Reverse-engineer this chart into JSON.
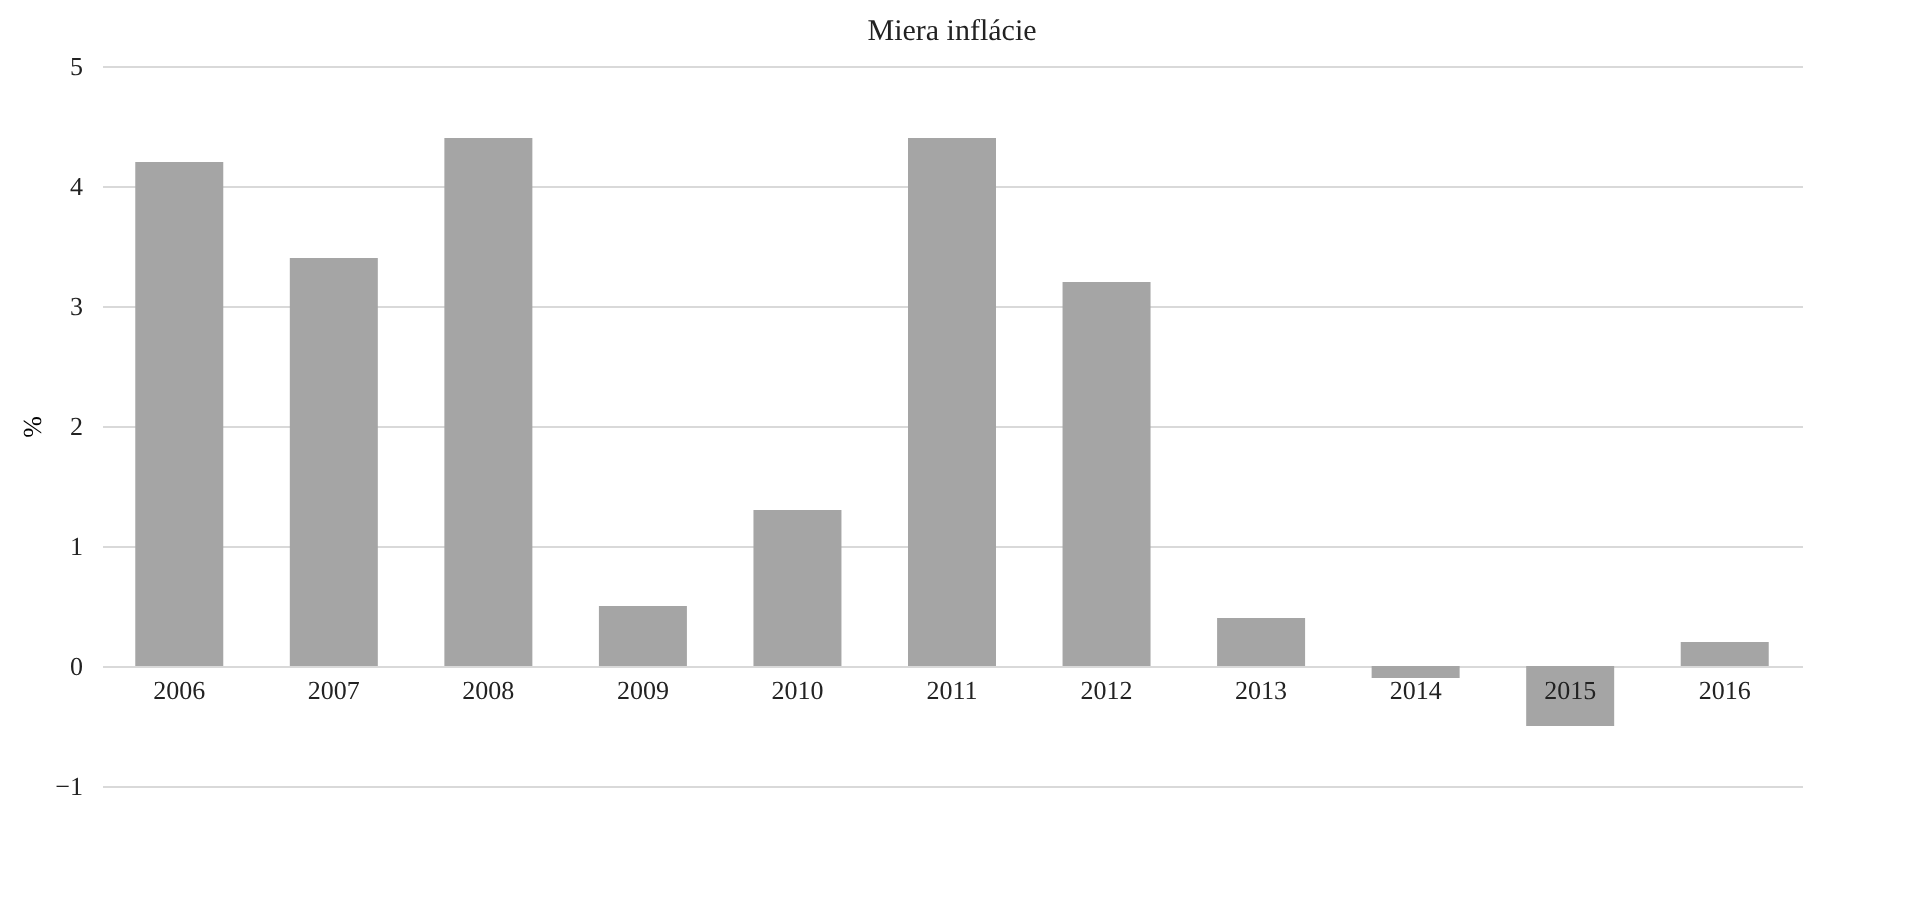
{
  "chart_data": {
    "type": "bar",
    "title": "Miera inflácie",
    "ylabel": "%",
    "categories": [
      "2006",
      "2007",
      "2008",
      "2009",
      "2010",
      "2011",
      "2012",
      "2013",
      "2014",
      "2015",
      "2016"
    ],
    "values": [
      4.2,
      3.4,
      4.4,
      0.5,
      1.3,
      4.4,
      3.2,
      0.4,
      -0.1,
      -0.5,
      0.2
    ],
    "color": "#a5a5a5",
    "ylim": [
      -1,
      5
    ],
    "yticks": [
      -1,
      0,
      1,
      2,
      3,
      4,
      5
    ],
    "grid": "y"
  }
}
